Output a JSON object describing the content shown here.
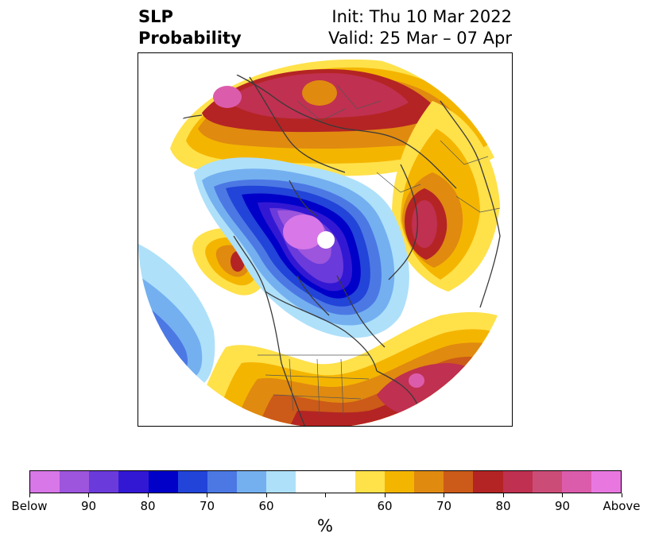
{
  "title": {
    "left_line1": "SLP",
    "left_line2": "Probability",
    "right_line1": "Init: Thu 10 Mar 2022",
    "right_line2": "Valid: 25 Mar – 07 Apr"
  },
  "map": {
    "projection": "north-polar stereographic",
    "features": [
      "coastlines",
      "country borders",
      "US state borders"
    ],
    "field": "sea level pressure tercile probability"
  },
  "colorbar": {
    "unit_label": "%",
    "colors": [
      "#d877e8",
      "#9c55dc",
      "#6a3adb",
      "#3318d3",
      "#0000c8",
      "#2244d8",
      "#4c78e4",
      "#74b0f0",
      "#aee0fa",
      "#ffffff",
      "#ffffff",
      "#ffe14a",
      "#f4b500",
      "#e08a10",
      "#cc5a18",
      "#b42424",
      "#c03050",
      "#cc4c78",
      "#dc5cac",
      "#e878e0"
    ],
    "tick_labels": [
      "Below",
      "90",
      "80",
      "70",
      "60",
      "",
      "60",
      "70",
      "80",
      "90",
      "Above"
    ]
  }
}
